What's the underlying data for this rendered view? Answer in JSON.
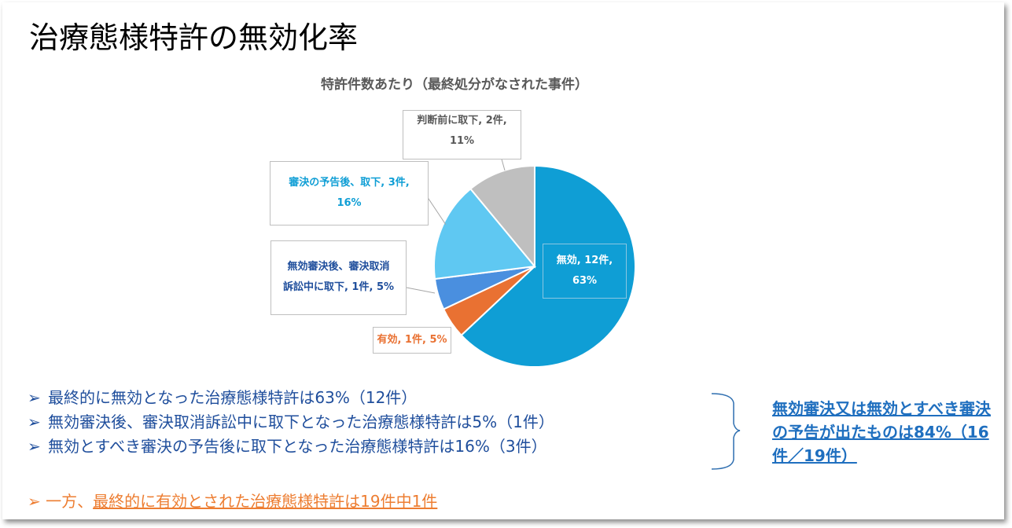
{
  "header": {
    "title": "治療態様特許の無効化率"
  },
  "chart_data": {
    "type": "pie",
    "title": "特許件数あたり（最終処分がなされた事件）",
    "slices": [
      {
        "name": "無効",
        "count": "12件",
        "percent": "63%",
        "value": 63,
        "color": "#0f9ed5"
      },
      {
        "name": "有効",
        "count": "1件",
        "percent": "5%",
        "value": 5,
        "color": "#e97132"
      },
      {
        "name": "無効審決後、審決取消訴訟中に取下",
        "count": "1件",
        "percent": "5%",
        "value": 5,
        "color": "#4a8fdf"
      },
      {
        "name": "審決の予告後、取下",
        "count": "3件",
        "percent": "16%",
        "value": 16,
        "color": "#5fc8f2"
      },
      {
        "name": "判断前に取下",
        "count": "2件",
        "percent": "11%",
        "value": 11,
        "color": "#bfbfbf"
      }
    ],
    "labels": {
      "invalid": {
        "line1": "無効, 12件,",
        "line2": "63%"
      },
      "valid": {
        "line1": "有効, 1件, 5%"
      },
      "invalid_withdrawn": {
        "line1": "無効審決後、審決取消",
        "line2": "訴訟中に取下, 1件, 5%"
      },
      "notice_withdrawn": {
        "line1": "審決の予告後、取下, 3件,",
        "line2": "16%"
      },
      "pre_withdrawn": {
        "line1": "判断前に取下, 2件,",
        "line2": "11%"
      }
    }
  },
  "bullets": {
    "marker": "➢",
    "items": [
      "最終的に無効となった治療態様特許は63%（12件）",
      "無効審決後、審決取消訴訟中に取下となった治療態様特許は5%（1件）",
      "無効とすべき審決の予告後に取下となった治療態様特許は16%（3件）"
    ]
  },
  "summary": {
    "text": "無効審決又は無効とすべき審決の予告が出たものは84%（16件／19件）"
  },
  "note": {
    "marker": "➢",
    "prefix": "一方、",
    "text": "最終的に有効とされた治療態様特許は19件中1件"
  },
  "colors": {
    "bullet_text": "#1f4e9c",
    "summary_text": "#1f6fbf",
    "note_text": "#ed7d31"
  }
}
